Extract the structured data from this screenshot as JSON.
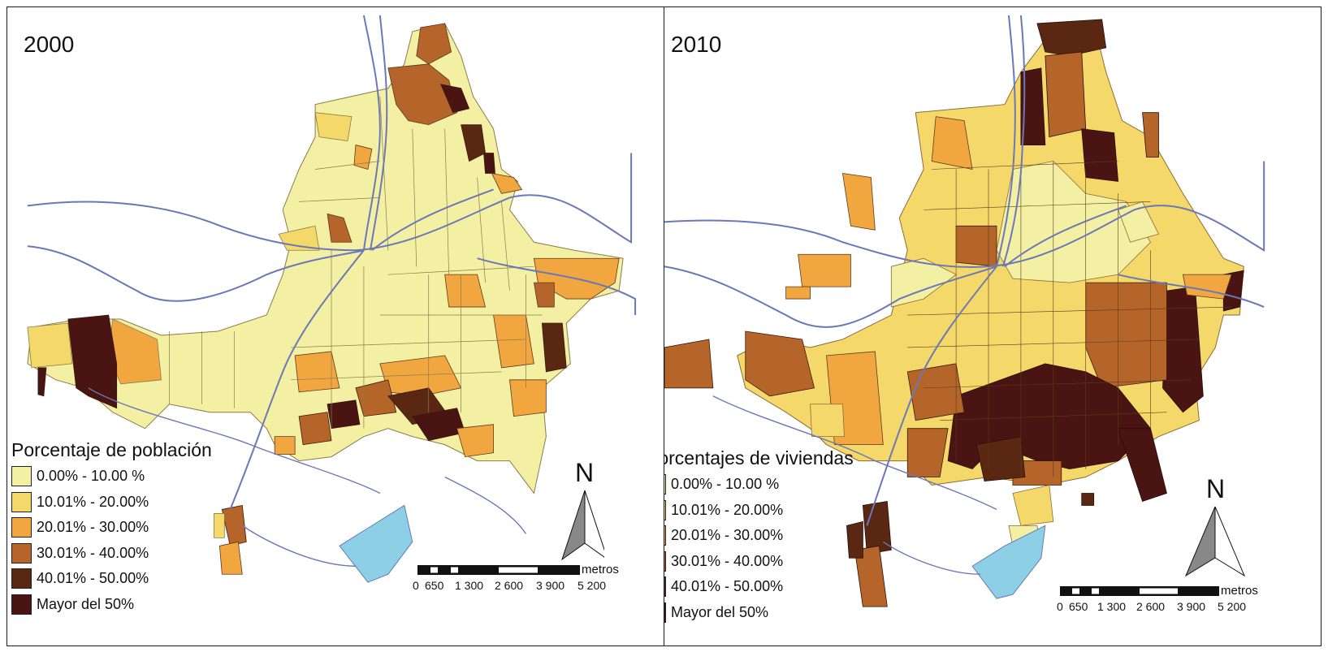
{
  "panels": [
    {
      "year": "2000",
      "legend_title": "Porcentaje de población",
      "legend_items": [
        "0.00% - 10.00 %",
        "10.01% - 20.00%",
        "20.01% - 30.00%",
        "30.01% - 40.00%",
        "40.01% - 50.00%",
        "Mayor del 50%"
      ]
    },
    {
      "year": "2010",
      "legend_title": "Porcentajes de viviendas",
      "legend_items": [
        "0.00% - 10.00 %",
        "10.01% - 20.00%",
        "20.01% - 30.00%",
        "30.01% - 40.00%",
        "40.01% - 50.00%",
        "Mayor del 50%"
      ]
    }
  ],
  "class_colors": [
    "#f3f0a4",
    "#f5d86a",
    "#f2a640",
    "#b5652a",
    "#5a2812",
    "#4a1412"
  ],
  "water_color": "#8dcfe4",
  "river_color": "#6a78b8",
  "north_label": "N",
  "scale": {
    "unit": "metros",
    "ticks": [
      "0",
      "650",
      "1 300",
      "2 600",
      "3 900",
      "5 200"
    ]
  }
}
